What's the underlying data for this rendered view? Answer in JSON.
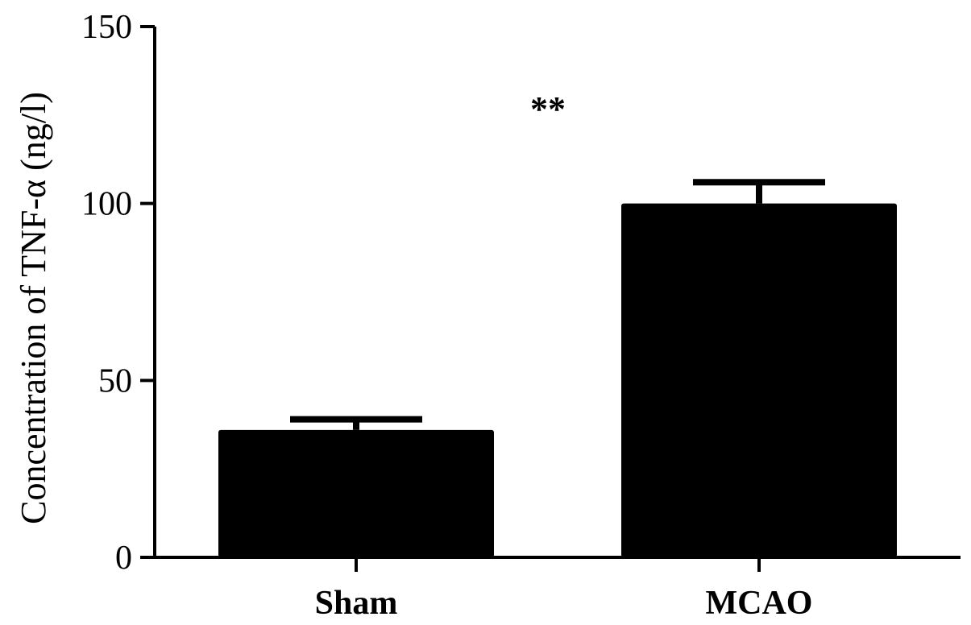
{
  "chart_data": {
    "type": "bar",
    "title": "",
    "xlabel": "",
    "ylabel": "Concentration of TNF-α (ng/l)",
    "ylim": [
      0,
      150
    ],
    "yticks": [
      0,
      50,
      100,
      150
    ],
    "grid": false,
    "legend": "none",
    "categories": [
      "Sham",
      "MCAO"
    ],
    "values": [
      36,
      100
    ],
    "errors": [
      3,
      6
    ],
    "bar_color": "#000000",
    "annotations": [
      {
        "category": "MCAO",
        "text": "**"
      }
    ]
  }
}
